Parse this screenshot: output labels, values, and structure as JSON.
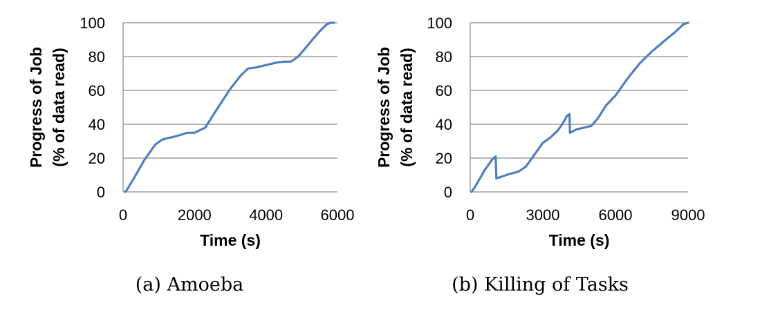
{
  "chart_data": [
    {
      "type": "line",
      "caption": "(a) Amoeba",
      "xlabel": "Time (s)",
      "ylabel": [
        "Progress of Job",
        "(% of data read)"
      ],
      "xlim": [
        0,
        6000
      ],
      "ylim": [
        0,
        100
      ],
      "xticks": [
        0,
        2000,
        4000,
        6000
      ],
      "yticks": [
        0,
        20,
        40,
        60,
        80,
        100
      ],
      "grid": "horizontal",
      "line_color": "#4f7fbe",
      "series": [
        {
          "x": [
            50,
            100,
            300,
            600,
            900,
            1100,
            1200,
            1500,
            1800,
            2000,
            2200,
            2300,
            2600,
            3000,
            3300,
            3500,
            3700,
            4000,
            4300,
            4500,
            4700,
            4900,
            5100,
            5300,
            5500,
            5700,
            5800,
            5900
          ],
          "y": [
            0,
            1,
            8,
            19,
            28,
            31,
            31.5,
            33,
            35,
            35,
            37,
            38,
            48,
            61,
            69,
            73,
            73.5,
            75,
            76.5,
            77,
            77,
            80,
            85,
            90,
            95,
            99,
            100,
            100
          ]
        }
      ]
    },
    {
      "type": "line",
      "caption": "(b) Killing of Tasks",
      "xlabel": "Time (s)",
      "ylabel": [
        "Progress of Job",
        "(% of data read)"
      ],
      "xlim": [
        0,
        9000
      ],
      "ylim": [
        0,
        100
      ],
      "xticks": [
        0,
        3000,
        6000,
        9000
      ],
      "yticks": [
        0,
        20,
        40,
        60,
        80,
        100
      ],
      "grid": "horizontal",
      "line_color": "#4f7fbe",
      "series": [
        {
          "x": [
            50,
            200,
            400,
            600,
            900,
            1050,
            1080,
            1300,
            1600,
            2000,
            2300,
            2600,
            2800,
            3000,
            3300,
            3600,
            3800,
            4000,
            4100,
            4120,
            4400,
            4700,
            5000,
            5300,
            5600,
            6000,
            6500,
            7000,
            7500,
            8000,
            8500,
            8800,
            9000
          ],
          "y": [
            0,
            3,
            8,
            13,
            19,
            21,
            8,
            9,
            10.5,
            12,
            15,
            21,
            25,
            29,
            32,
            36,
            40,
            45,
            46,
            35,
            37,
            38,
            39,
            44,
            51,
            57,
            67,
            76,
            83,
            89,
            95,
            99,
            100
          ]
        }
      ]
    }
  ]
}
